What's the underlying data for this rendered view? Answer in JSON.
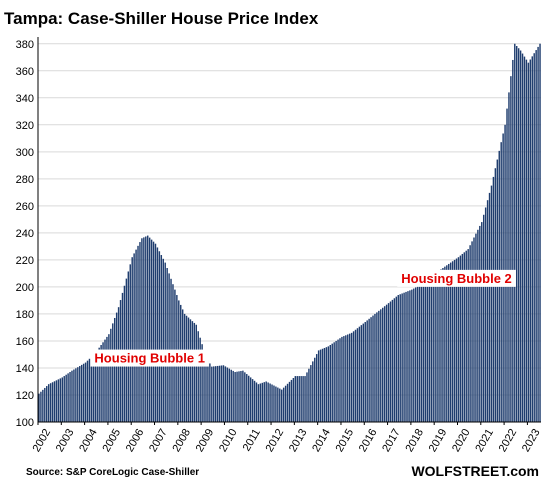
{
  "chart_data": {
    "type": "bar",
    "title": "Tampa: Case-Shiller House Price Index",
    "xlabel": "",
    "ylabel": "",
    "ylim": [
      100,
      385
    ],
    "yticks": [
      100,
      120,
      140,
      160,
      180,
      200,
      220,
      240,
      260,
      280,
      300,
      320,
      340,
      360,
      380
    ],
    "xticks": [
      "2002",
      "2003",
      "2004",
      "2005",
      "2006",
      "2007",
      "2008",
      "2009",
      "2010",
      "2011",
      "2012",
      "2013",
      "2014",
      "2015",
      "2016",
      "2017",
      "2018",
      "2019",
      "2020",
      "2021",
      "2022",
      "2023"
    ],
    "frequency": "monthly",
    "start": "2002-01",
    "grid": true,
    "bar_color": "#1f3d6e",
    "anchors": [
      [
        "2002-01",
        121
      ],
      [
        "2002-06",
        128
      ],
      [
        "2003-01",
        133
      ],
      [
        "2003-06",
        138
      ],
      [
        "2004-01",
        144
      ],
      [
        "2004-06",
        151
      ],
      [
        "2005-01",
        165
      ],
      [
        "2005-06",
        185
      ],
      [
        "2006-01",
        222
      ],
      [
        "2006-06",
        236
      ],
      [
        "2006-09",
        238
      ],
      [
        "2007-01",
        232
      ],
      [
        "2007-06",
        218
      ],
      [
        "2008-01",
        190
      ],
      [
        "2008-04",
        180
      ],
      [
        "2008-10",
        172
      ],
      [
        "2009-03",
        148
      ],
      [
        "2009-06",
        141
      ],
      [
        "2009-12",
        142
      ],
      [
        "2010-06",
        137
      ],
      [
        "2010-10",
        138
      ],
      [
        "2011-06",
        128
      ],
      [
        "2011-10",
        130
      ],
      [
        "2012-06",
        124
      ],
      [
        "2013-01",
        134
      ],
      [
        "2013-06",
        134
      ],
      [
        "2014-01",
        153
      ],
      [
        "2014-06",
        156
      ],
      [
        "2015-01",
        163
      ],
      [
        "2015-06",
        166
      ],
      [
        "2016-01",
        174
      ],
      [
        "2016-06",
        180
      ],
      [
        "2017-01",
        188
      ],
      [
        "2017-06",
        194
      ],
      [
        "2018-01",
        198
      ],
      [
        "2018-06",
        202
      ],
      [
        "2019-01",
        210
      ],
      [
        "2019-06",
        215
      ],
      [
        "2020-01",
        222
      ],
      [
        "2020-06",
        228
      ],
      [
        "2021-01",
        248
      ],
      [
        "2021-06",
        275
      ],
      [
        "2022-01",
        320
      ],
      [
        "2022-06",
        380
      ],
      [
        "2022-09",
        375
      ],
      [
        "2023-01",
        366
      ],
      [
        "2023-07",
        380
      ]
    ],
    "annotations": [
      {
        "text": "Housing Bubble 1",
        "x": "2004-04",
        "y": 144
      },
      {
        "text": "Housing Bubble 2",
        "x": "2017-06",
        "y": 203
      }
    ]
  },
  "source": "Source: S&P CoreLogic Case-Shiller",
  "brand": "WOLFSTREET.com"
}
